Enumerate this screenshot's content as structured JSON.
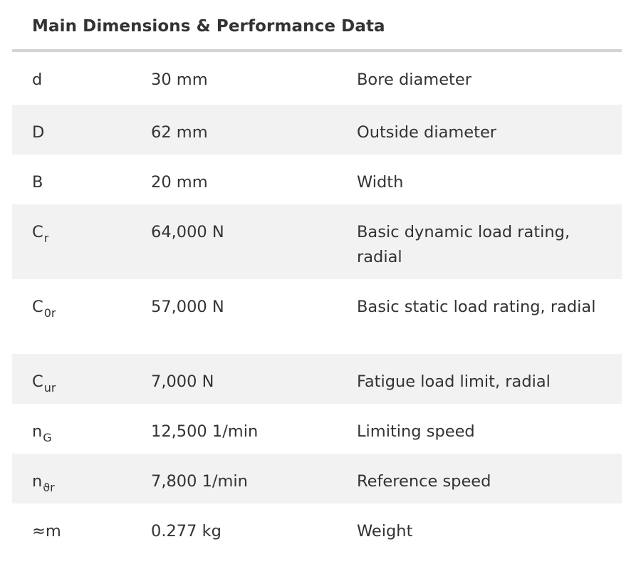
{
  "table": {
    "title": "Main Dimensions & Performance Data",
    "rows": [
      {
        "symbol": "d",
        "sub": "",
        "value": "30 mm",
        "description": "Bore diameter"
      },
      {
        "symbol": "D",
        "sub": "",
        "value": "62 mm",
        "description": "Outside diameter"
      },
      {
        "symbol": "B",
        "sub": "",
        "value": "20 mm",
        "description": "Width"
      },
      {
        "symbol": "C",
        "sub": "r",
        "value": "64,000 N",
        "description": "Basic dynamic load rating, radial"
      },
      {
        "symbol": "C",
        "sub": "0r",
        "value": "57,000 N",
        "description": "Basic static load rating, radial"
      },
      {
        "symbol": "C",
        "sub": "ur",
        "value": "7,000 N",
        "description": "Fatigue load limit, radial"
      },
      {
        "symbol": "n",
        "sub": "G",
        "value": "12,500 1/min",
        "description": "Limiting speed"
      },
      {
        "symbol": "n",
        "sub": "ϑr",
        "value": "7,800 1/min",
        "description": "Reference speed"
      },
      {
        "symbol": "≈m",
        "sub": "",
        "value": "0.277 kg",
        "description": "Weight"
      }
    ]
  }
}
